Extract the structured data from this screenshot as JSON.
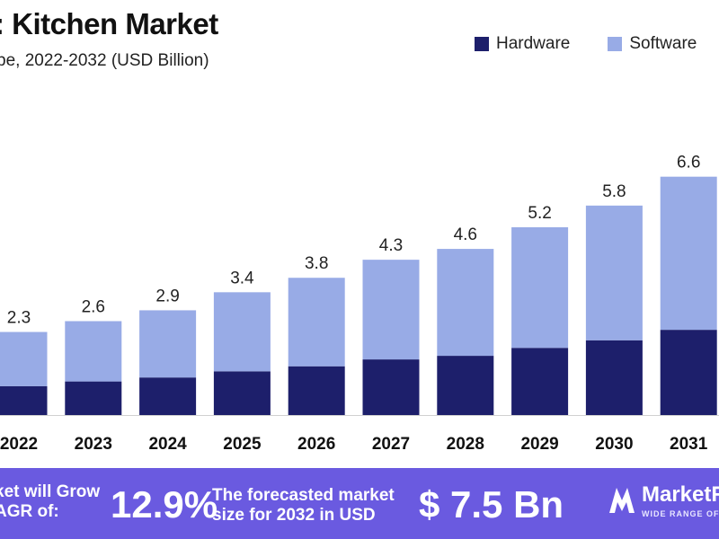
{
  "header": {
    "title": ": Kitchen Market",
    "subtitle": "pe, 2022-2032 (USD Billion)"
  },
  "legend": [
    {
      "label": "Hardware",
      "color": "#1d1f6b"
    },
    {
      "label": "Software",
      "color": "#98abe6"
    }
  ],
  "chart_data": {
    "type": "bar",
    "stacked": true,
    "categories": [
      "2022",
      "2023",
      "2024",
      "2025",
      "2026",
      "2027",
      "2028",
      "2029",
      "2030",
      "2031"
    ],
    "series": [
      {
        "name": "Hardware",
        "color": "#1d1f6b",
        "values": [
          0.8,
          0.93,
          1.04,
          1.21,
          1.35,
          1.54,
          1.64,
          1.86,
          2.07,
          2.36
        ]
      },
      {
        "name": "Software",
        "color": "#98abe6",
        "values": [
          1.5,
          1.67,
          1.86,
          2.19,
          2.45,
          2.76,
          2.96,
          3.34,
          3.73,
          4.24
        ]
      }
    ],
    "totals": [
      "2.3",
      "2.6",
      "2.9",
      "3.4",
      "3.8",
      "4.3",
      "4.6",
      "5.2",
      "5.8",
      "6.6"
    ],
    "ylim": [
      0,
      7.5
    ],
    "grid": false,
    "legend_position": "top-right"
  },
  "banner": {
    "left_text": "ket will Grow\nAGR of:",
    "cagr": "12.9%",
    "mid_text": "The forecasted market\nsize for 2032 in USD",
    "value": "$ 7.5 Bn",
    "brand_name": "MarketR",
    "brand_tagline": "WIDE RANGE OF GL"
  }
}
